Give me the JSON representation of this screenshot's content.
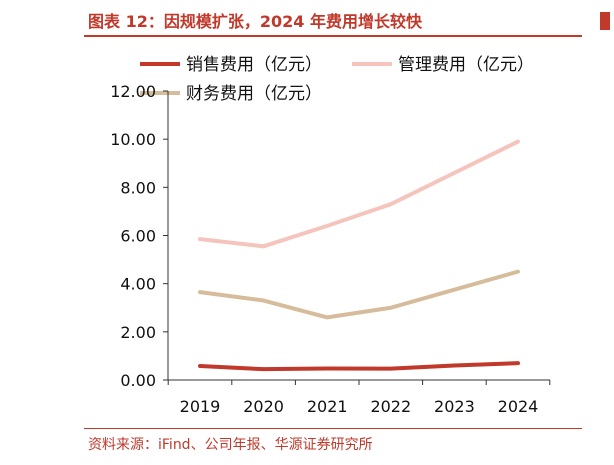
{
  "header": {
    "title": "图表 12：因规模扩张，2024 年费用增长较快"
  },
  "footer": {
    "source": "资料来源：iFind、公司年报、华源证券研究所"
  },
  "chart_data": {
    "type": "line",
    "x": [
      "2019",
      "2020",
      "2021",
      "2022",
      "2023",
      "2024"
    ],
    "series": [
      {
        "name": "销售费用（亿元）",
        "color": "#c0392b",
        "values": [
          0.58,
          0.45,
          0.48,
          0.47,
          0.6,
          0.7
        ]
      },
      {
        "name": "管理费用（亿元）",
        "color": "#f5c4bd",
        "values": [
          5.85,
          5.55,
          6.4,
          7.3,
          8.6,
          9.9
        ]
      },
      {
        "name": "财务费用（亿元）",
        "color": "#d6bc9a",
        "values": [
          3.65,
          3.3,
          2.6,
          3.0,
          3.75,
          4.5
        ]
      }
    ],
    "yticks": [
      "0.00",
      "2.00",
      "4.00",
      "6.00",
      "8.00",
      "10.00",
      "12.00"
    ],
    "ylim": [
      0,
      12
    ],
    "legend": "top",
    "grid": false
  }
}
